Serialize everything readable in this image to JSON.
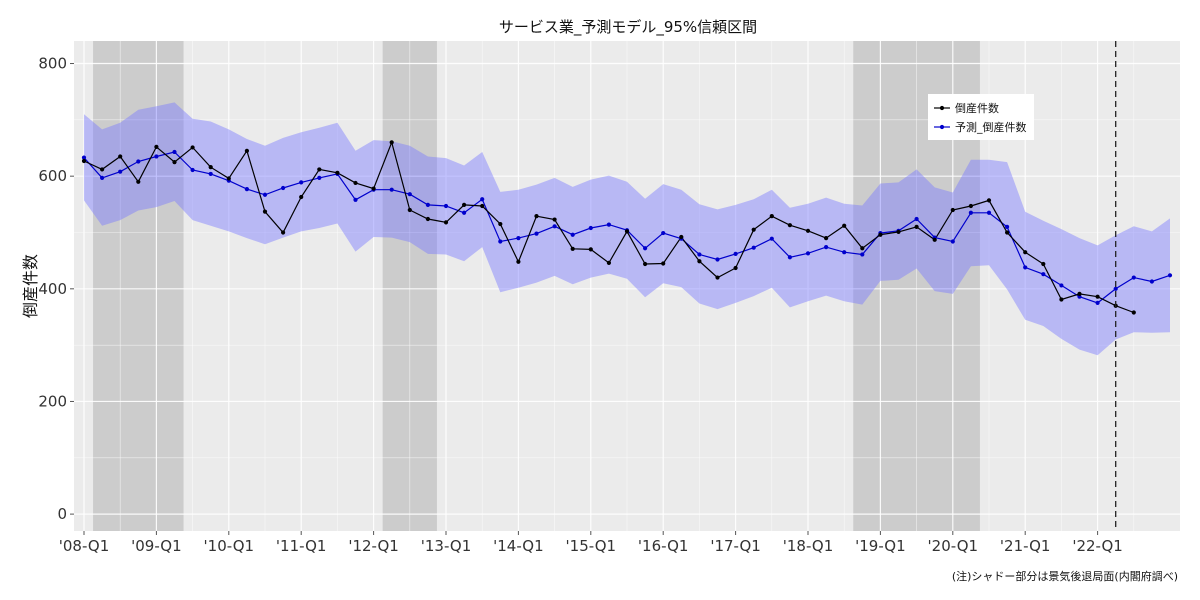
{
  "chart_data": {
    "type": "line",
    "title": "サービス業_予測モデル_95%信頼区間",
    "xlabel": "",
    "ylabel": "倒産件数",
    "ylim": [
      -30,
      840
    ],
    "yticks": [
      0,
      200,
      400,
      600,
      800
    ],
    "x_tick_labels": [
      "'08-Q1",
      "'09-Q1",
      "'10-Q1",
      "'11-Q1",
      "'12-Q1",
      "'13-Q1",
      "'14-Q1",
      "'15-Q1",
      "'16-Q1",
      "'17-Q1",
      "'18-Q1",
      "'19-Q1",
      "'20-Q1",
      "'21-Q1",
      "'22-Q1"
    ],
    "grid": true,
    "legend_position": "top-right",
    "note": "(注)シャドー部分は景気後退局面(内閣府調べ)",
    "recession_shading": [
      {
        "start": "'08-Q2",
        "end": "'09-Q2"
      },
      {
        "start": "'12-Q2",
        "end": "'12-Q4"
      },
      {
        "start": "'18-Q4",
        "end": "'20-Q2"
      }
    ],
    "forecast_boundary": "'22-Q2",
    "series": [
      {
        "name": "倒産件数",
        "color": "#000000",
        "values": [
          627,
          612,
          635,
          590,
          652,
          625,
          651,
          616,
          596,
          645,
          537,
          500,
          563,
          612,
          606,
          588,
          578,
          660,
          540,
          524,
          518,
          549,
          547,
          515,
          448,
          529,
          523,
          471,
          470,
          446,
          502,
          444,
          445,
          492,
          449,
          420,
          437,
          505,
          529,
          513,
          503,
          490,
          512,
          472,
          496,
          501,
          510,
          487,
          540,
          547,
          557,
          500,
          465,
          444,
          381,
          391,
          386,
          370,
          358
        ]
      },
      {
        "name": "予測_倒産件数",
        "color": "#0000cc",
        "values": [
          633,
          597,
          608,
          626,
          635,
          643,
          611,
          604,
          592,
          577,
          567,
          579,
          589,
          597,
          604,
          558,
          576,
          576,
          568,
          549,
          547,
          535,
          559,
          484,
          490,
          498,
          511,
          496,
          508,
          514,
          504,
          472,
          499,
          489,
          461,
          452,
          462,
          473,
          489,
          456,
          463,
          474,
          465,
          461,
          499,
          503,
          524,
          491,
          484,
          535,
          535,
          510,
          438,
          426,
          406,
          386,
          375,
          400,
          420,
          413,
          424
        ]
      }
    ],
    "confidence_band_95": {
      "upper": [
        710,
        683,
        695,
        718,
        724,
        731,
        702,
        697,
        683,
        666,
        654,
        668,
        678,
        686,
        695,
        645,
        664,
        662,
        654,
        635,
        632,
        619,
        643,
        572,
        576,
        585,
        597,
        581,
        594,
        601,
        590,
        560,
        586,
        576,
        550,
        541,
        549,
        559,
        576,
        544,
        551,
        562,
        551,
        548,
        587,
        589,
        612,
        580,
        571,
        629,
        629,
        625,
        537,
        521,
        506,
        490,
        477,
        495,
        511,
        502,
        525
      ],
      "lower": [
        557,
        512,
        522,
        539,
        545,
        556,
        522,
        512,
        502,
        490,
        479,
        491,
        502,
        508,
        516,
        466,
        492,
        491,
        483,
        462,
        461,
        449,
        474,
        394,
        402,
        411,
        423,
        408,
        420,
        427,
        418,
        385,
        410,
        403,
        374,
        364,
        375,
        387,
        402,
        367,
        378,
        388,
        378,
        372,
        414,
        416,
        436,
        396,
        391,
        440,
        442,
        399,
        345,
        334,
        311,
        292,
        282,
        310,
        323,
        322,
        323
      ]
    }
  }
}
